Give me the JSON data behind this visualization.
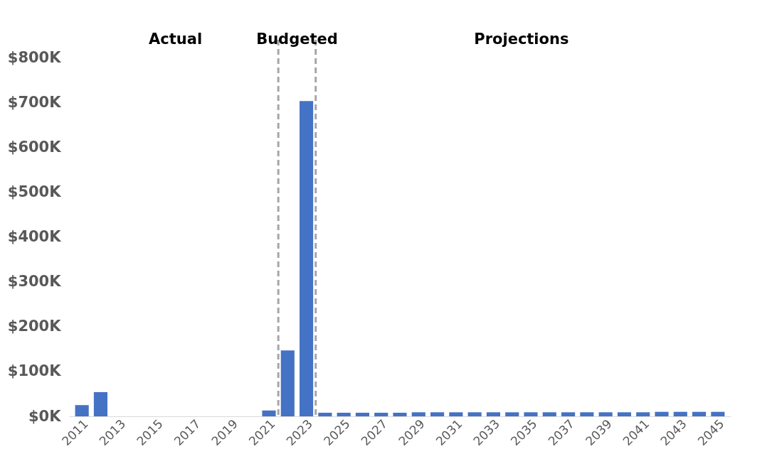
{
  "chart_data": {
    "type": "bar",
    "x": [
      2011,
      2012,
      2013,
      2014,
      2015,
      2016,
      2017,
      2018,
      2019,
      2020,
      2021,
      2022,
      2023,
      2024,
      2025,
      2026,
      2027,
      2028,
      2029,
      2030,
      2031,
      2032,
      2033,
      2034,
      2035,
      2036,
      2037,
      2038,
      2039,
      2040,
      2041,
      2042,
      2043,
      2044,
      2045
    ],
    "values": [
      25000,
      54000,
      0,
      0,
      0,
      0,
      0,
      0,
      0,
      0,
      13000,
      147000,
      703000,
      8000,
      8000,
      8000,
      8000,
      8000,
      9000,
      9000,
      9000,
      9000,
      9000,
      9000,
      9000,
      9000,
      9000,
      9000,
      9000,
      9000,
      9000,
      10000,
      10000,
      10000,
      10000
    ],
    "color": "#4472c4",
    "xlim": [
      2010.5,
      2045.5
    ],
    "xticks": [
      2011,
      2013,
      2015,
      2017,
      2019,
      2021,
      2023,
      2025,
      2027,
      2029,
      2031,
      2033,
      2035,
      2037,
      2039,
      2041,
      2043,
      2045
    ],
    "ylim": [
      0,
      800000
    ],
    "yticks": [
      {
        "value": 0,
        "label": "$0K"
      },
      {
        "value": 100000,
        "label": "$100K"
      },
      {
        "value": 200000,
        "label": "$200K"
      },
      {
        "value": 300000,
        "label": "$300K"
      },
      {
        "value": 400000,
        "label": "$400K"
      },
      {
        "value": 500000,
        "label": "$500K"
      },
      {
        "value": 600000,
        "label": "$600K"
      },
      {
        "value": 700000,
        "label": "$700K"
      },
      {
        "value": 800000,
        "label": "$800K"
      }
    ],
    "ref_lines": [
      {
        "axis": "x",
        "value": 2021.5,
        "color": "#a6a6a6",
        "line_style": "dashed"
      },
      {
        "axis": "x",
        "value": 2023.5,
        "color": "#a6a6a6",
        "line_style": "dashed"
      }
    ],
    "annotations": [
      "Actual",
      "Budgeted",
      "Projections"
    ],
    "grid": false
  }
}
